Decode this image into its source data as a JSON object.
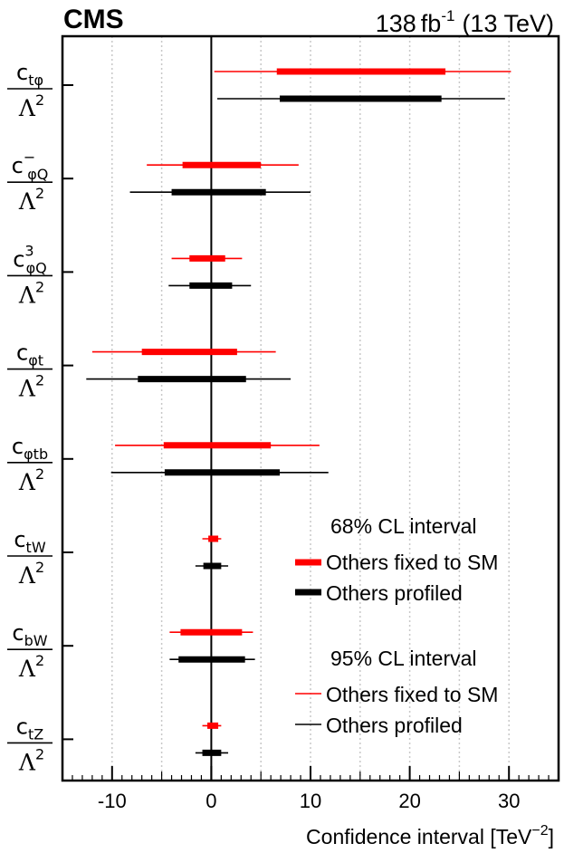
{
  "header": {
    "experiment": "CMS",
    "lumi_value": "138",
    "lumi_unit": "fb",
    "lumi_exp": "-1",
    "energy": "(13 TeV)"
  },
  "chart_data": {
    "type": "interval",
    "title": "",
    "xlabel": "Confidence interval [TeV",
    "xlabel_exp": "−2",
    "xlabel_close": "]",
    "xlim": [
      -15,
      35
    ],
    "xticks": [
      -10,
      0,
      10,
      20,
      30
    ],
    "xtick_labels": [
      "-10",
      "0",
      "10",
      "20",
      "30"
    ],
    "minor_gridlines": [
      -10,
      -5,
      0,
      5,
      10,
      15,
      20,
      25,
      30
    ],
    "colors": {
      "fixed": "#ff0000",
      "profiled": "#000000"
    },
    "coefficients": [
      {
        "main": "c",
        "sub": "tφ",
        "sup": "",
        "den": "Λ",
        "den_exp": "2",
        "fixed": {
          "ci68": [
            6.6,
            23.6
          ],
          "ci95": [
            0.3,
            30.2
          ]
        },
        "profiled": {
          "ci68": [
            6.9,
            23.2
          ],
          "ci95": [
            0.6,
            29.6
          ]
        }
      },
      {
        "main": "c",
        "sub": "φQ",
        "sup": "−",
        "den": "Λ",
        "den_exp": "2",
        "fixed": {
          "ci68": [
            -2.9,
            5.0
          ],
          "ci95": [
            -6.5,
            8.8
          ]
        },
        "profiled": {
          "ci68": [
            -4.0,
            5.5
          ],
          "ci95": [
            -8.2,
            10.0
          ]
        }
      },
      {
        "main": "c",
        "sub": "φQ",
        "sup": "3",
        "den": "Λ",
        "den_exp": "2",
        "fixed": {
          "ci68": [
            -2.2,
            1.4
          ],
          "ci95": [
            -4.0,
            3.1
          ]
        },
        "profiled": {
          "ci68": [
            -2.2,
            2.1
          ],
          "ci95": [
            -4.3,
            4.0
          ]
        }
      },
      {
        "main": "c",
        "sub": "φt",
        "sup": "",
        "den": "Λ",
        "den_exp": "2",
        "fixed": {
          "ci68": [
            -7.0,
            2.6
          ],
          "ci95": [
            -12.0,
            6.5
          ]
        },
        "profiled": {
          "ci68": [
            -7.4,
            3.5
          ],
          "ci95": [
            -12.6,
            8.0
          ]
        }
      },
      {
        "main": "c",
        "sub": "φtb",
        "sup": "",
        "den": "Λ",
        "den_exp": "2",
        "fixed": {
          "ci68": [
            -4.8,
            6.0
          ],
          "ci95": [
            -9.7,
            10.9
          ]
        },
        "profiled": {
          "ci68": [
            -4.7,
            6.9
          ],
          "ci95": [
            -10.1,
            11.8
          ]
        }
      },
      {
        "main": "c",
        "sub": "tW",
        "sup": "",
        "den": "Λ",
        "den_exp": "2",
        "fixed": {
          "ci68": [
            -0.3,
            0.7
          ],
          "ci95": [
            -0.9,
            1.0
          ]
        },
        "profiled": {
          "ci68": [
            -0.8,
            1.0
          ],
          "ci95": [
            -1.6,
            1.7
          ]
        }
      },
      {
        "main": "c",
        "sub": "bW",
        "sup": "",
        "den": "Λ",
        "den_exp": "2",
        "fixed": {
          "ci68": [
            -3.1,
            3.1
          ],
          "ci95": [
            -4.2,
            4.2
          ]
        },
        "profiled": {
          "ci68": [
            -3.3,
            3.4
          ],
          "ci95": [
            -4.2,
            4.4
          ]
        }
      },
      {
        "main": "c",
        "sub": "tZ",
        "sup": "",
        "den": "Λ",
        "den_exp": "2",
        "fixed": {
          "ci68": [
            -0.4,
            0.7
          ],
          "ci95": [
            -0.9,
            1.0
          ]
        },
        "profiled": {
          "ci68": [
            -0.9,
            1.0
          ],
          "ci95": [
            -1.6,
            1.7
          ]
        }
      }
    ],
    "legend": {
      "position": "bottom-right",
      "title68": "68% CL interval",
      "title95": "95% CL interval",
      "fixed_label": "Others fixed to SM",
      "profiled_label": "Others profiled"
    }
  }
}
